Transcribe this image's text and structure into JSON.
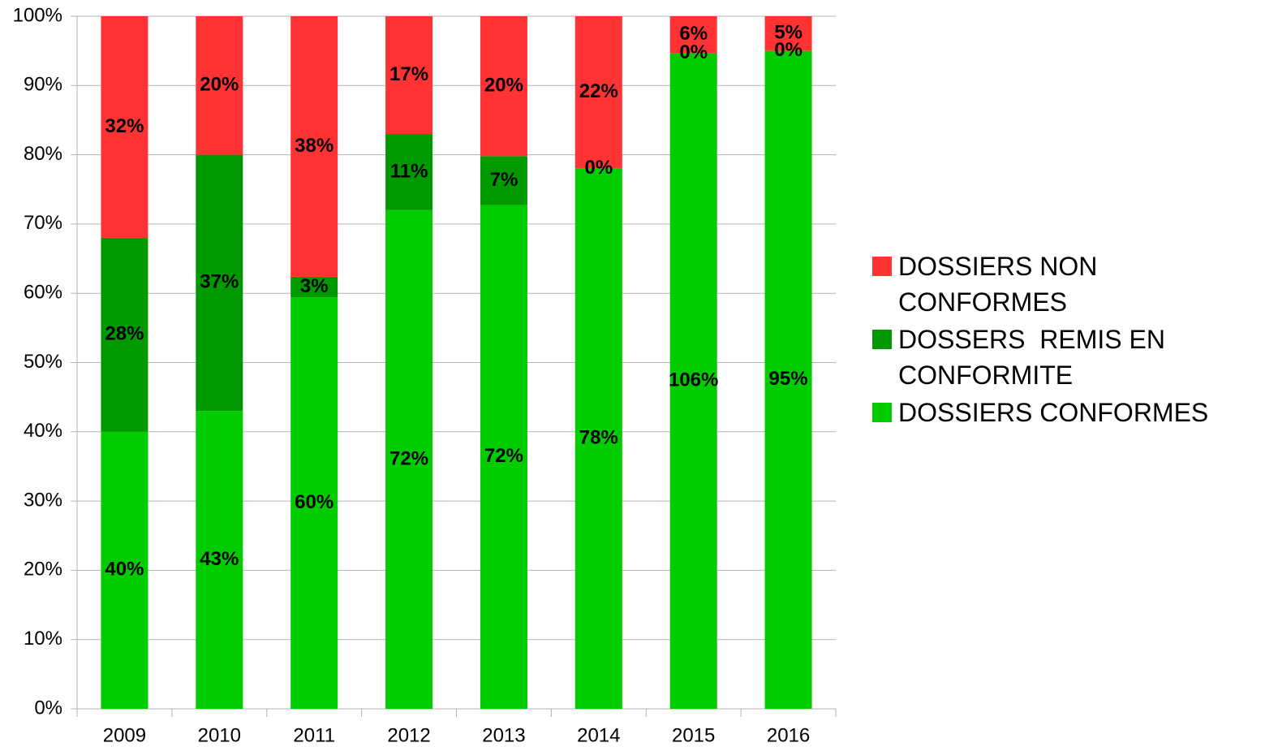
{
  "chart_data": {
    "type": "bar",
    "stacked": "percent",
    "categories": [
      "2009",
      "2010",
      "2011",
      "2012",
      "2013",
      "2014",
      "2015",
      "2016"
    ],
    "series": [
      {
        "name": "DOSSIERS CONFORMES",
        "color": "#00cc00",
        "values": [
          40,
          43,
          60,
          72,
          72,
          78,
          106,
          95
        ],
        "value_labels": [
          "40%",
          "43%",
          "60%",
          "72%",
          "72%",
          "78%",
          "106%",
          "95%"
        ]
      },
      {
        "name": "DOSSERS  REMIS EN CONFORMITE",
        "color": "#009900",
        "values": [
          28,
          37,
          3,
          11,
          7,
          0,
          0,
          0
        ],
        "value_labels": [
          "28%",
          "37%",
          "3%",
          "11%",
          "7%",
          "0%",
          "0%",
          "0%"
        ]
      },
      {
        "name": "DOSSIERS NON CONFORMES",
        "color": "#ff3333",
        "values": [
          32,
          20,
          38,
          17,
          20,
          22,
          6,
          5
        ],
        "value_labels": [
          "32%",
          "20%",
          "38%",
          "17%",
          "20%",
          "22%",
          "6%",
          "5%"
        ]
      }
    ],
    "ylim": [
      0,
      100
    ],
    "yticks": [
      {
        "value": 0,
        "label": "0%"
      },
      {
        "value": 10,
        "label": "10%"
      },
      {
        "value": 20,
        "label": "20%"
      },
      {
        "value": 30,
        "label": "30%"
      },
      {
        "value": 40,
        "label": "40%"
      },
      {
        "value": 50,
        "label": "50%"
      },
      {
        "value": 60,
        "label": "60%"
      },
      {
        "value": 70,
        "label": "70%"
      },
      {
        "value": 80,
        "label": "80%"
      },
      {
        "value": 90,
        "label": "90%"
      },
      {
        "value": 100,
        "label": "100%"
      }
    ],
    "grid": true,
    "legend": "right"
  }
}
